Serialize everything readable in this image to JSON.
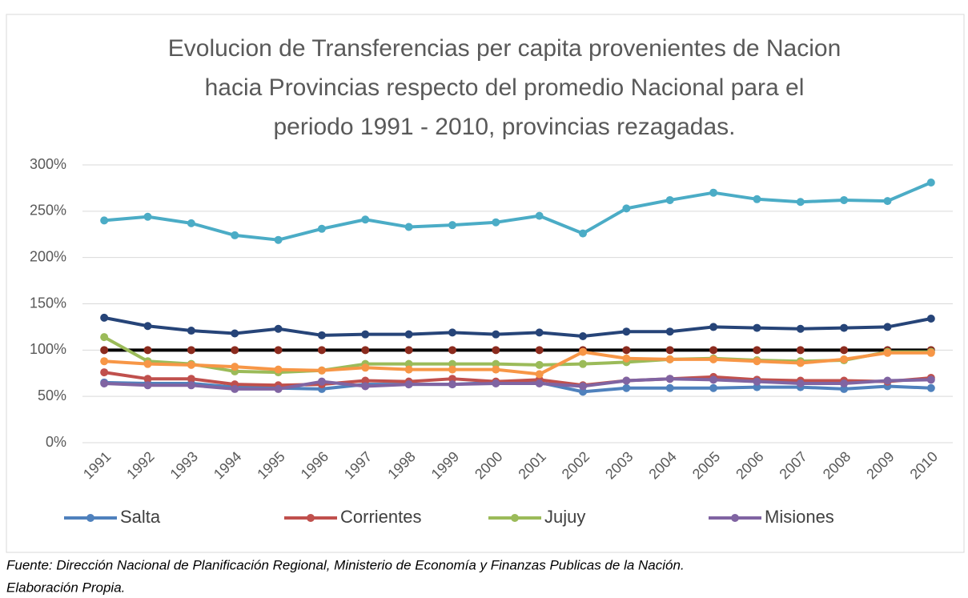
{
  "chart_data": {
    "type": "line",
    "title": [
      "Evolucion de Transferencias per capita provenientes de Nacion",
      "hacia  Provincias respecto del promedio Nacional para el",
      "periodo  1991 - 2010,  provincias rezagadas."
    ],
    "categories": [
      "1991",
      "1992",
      "1993",
      "1994",
      "1995",
      "1996",
      "1997",
      "1998",
      "1999",
      "2000",
      "2001",
      "2002",
      "2003",
      "2004",
      "2005",
      "2006",
      "2007",
      "2008",
      "2009",
      "2010"
    ],
    "series": [
      {
        "color": "#4bacc6",
        "values": [
          240,
          244,
          237,
          224,
          219,
          231,
          241,
          233,
          235,
          238,
          245,
          226,
          253,
          262,
          270,
          263,
          260,
          262,
          261,
          281
        ]
      },
      {
        "color": "#264478",
        "values": [
          135,
          126,
          121,
          118,
          123,
          116,
          117,
          117,
          119,
          117,
          119,
          115,
          120,
          120,
          125,
          124,
          123,
          124,
          125,
          134
        ]
      },
      {
        "color": "#000000",
        "marker_color": "#8b2b1e",
        "values": [
          100,
          100,
          100,
          100,
          100,
          100,
          100,
          100,
          100,
          100,
          100,
          100,
          100,
          100,
          100,
          100,
          100,
          100,
          100,
          100
        ]
      },
      {
        "name": "Salta",
        "color": "#4f81bd",
        "values": [
          65,
          64,
          64,
          60,
          59,
          58,
          63,
          63,
          63,
          65,
          65,
          55,
          59,
          59,
          59,
          60,
          60,
          58,
          61,
          59
        ]
      },
      {
        "name": "Corrientes",
        "color": "#c0504d",
        "values": [
          76,
          69,
          69,
          63,
          62,
          63,
          67,
          66,
          69,
          66,
          68,
          62,
          67,
          69,
          71,
          68,
          67,
          67,
          66,
          70
        ]
      },
      {
        "name": "Jujuy",
        "color": "#9bbb59",
        "values": [
          114,
          88,
          85,
          77,
          76,
          78,
          85,
          85,
          85,
          85,
          84,
          85,
          87,
          90,
          91,
          89,
          88,
          89,
          98,
          98
        ]
      },
      {
        "name": "Misiones",
        "color": "#8064a2",
        "values": [
          64,
          62,
          62,
          58,
          58,
          66,
          61,
          63,
          63,
          64,
          64,
          61,
          67,
          69,
          68,
          66,
          64,
          64,
          67,
          68
        ]
      },
      {
        "color": "#f79646",
        "values": [
          88,
          85,
          84,
          82,
          79,
          78,
          81,
          79,
          79,
          79,
          74,
          98,
          91,
          90,
          90,
          88,
          86,
          90,
          97,
          97
        ]
      }
    ],
    "ylim": [
      0,
      300
    ],
    "yticks": [
      {
        "value": 0,
        "label": "0%"
      },
      {
        "value": 50,
        "label": "50%"
      },
      {
        "value": 100,
        "label": "100%"
      },
      {
        "value": 150,
        "label": "150%"
      },
      {
        "value": 200,
        "label": "200%"
      },
      {
        "value": 250,
        "label": "250%"
      },
      {
        "value": 300,
        "label": "300%"
      }
    ],
    "grid": true,
    "legend": "bottom",
    "note": [
      "Fuente: Dirección Nacional de Planificación Regional, Ministerio de Economía y Finanzas Publicas de la Nación.",
      "Elaboración Propia."
    ]
  }
}
